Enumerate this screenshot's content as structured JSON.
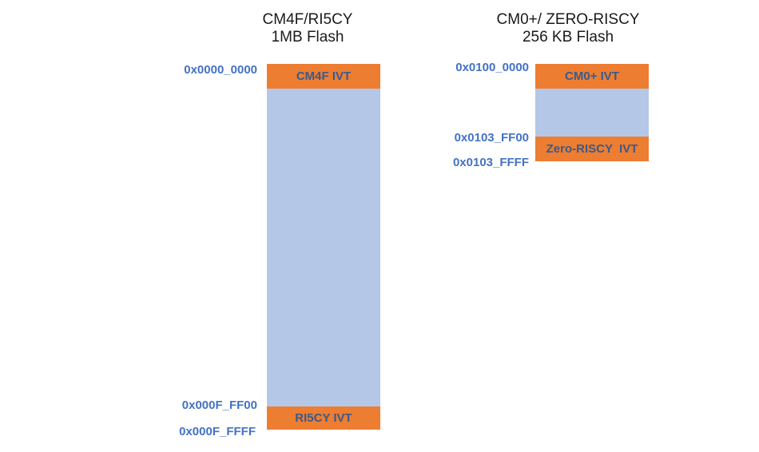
{
  "left_map": {
    "title_line1": "CM4F/RI5CY",
    "title_line2": "1MB Flash",
    "addr_start": "0x0000_0000",
    "addr_ivt_end": "0x000F_FF00",
    "addr_end": "0x000F_FFFF",
    "top_ivt_label": "CM4F IVT",
    "bottom_ivt_label": "RI5CY IVT"
  },
  "right_map": {
    "title_line1": "CM0+/ ZERO-RISCY",
    "title_line2": "256 KB Flash",
    "addr_start": "0x0100_0000",
    "addr_ivt_end": "0x0103_FF00",
    "addr_end": "0x0103_FFFF",
    "top_ivt_label": "CM0+ IVT",
    "bottom_ivt_label": "Zero-RISCY  IVT"
  },
  "colors": {
    "flash_fill": "#b4c7e7",
    "ivt_fill": "#ed7d31",
    "address_text": "#4472c4",
    "ivt_text": "#3c5a8a"
  }
}
